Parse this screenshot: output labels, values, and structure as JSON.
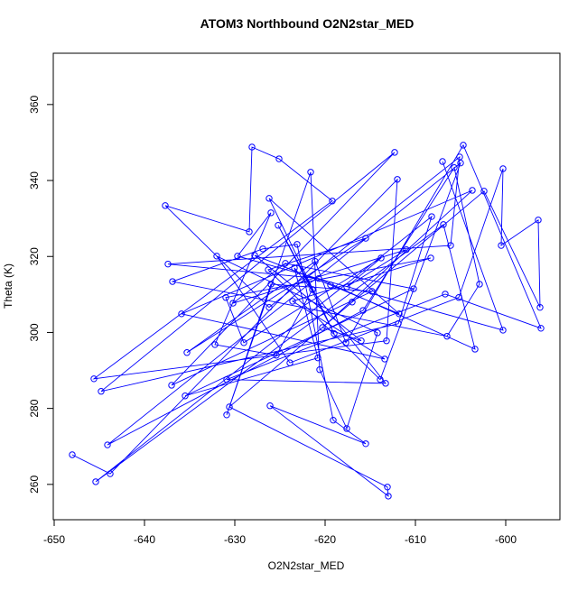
{
  "chart_data": {
    "type": "line",
    "title": "ATOM3 Northbound O2N2star_MED",
    "x_label": "O2N2star_MED",
    "y_label": "Theta (K)",
    "x": [
      -648,
      -643.8,
      -612,
      -613.2,
      -645.6,
      -619.2,
      -625.1,
      -628.1,
      -628.4,
      -637.7,
      -626.2,
      -605.1,
      -606.1,
      -637.4,
      -620.7,
      -603.4,
      -606.9,
      -645.4,
      -608.2,
      -611.9,
      -644.8,
      -612.3,
      -637,
      -614.8,
      -626,
      -630.9,
      -621.6,
      -620.6,
      -617.6,
      -614.2,
      -632,
      -623.9,
      -605.2,
      -600.3,
      -600.5,
      -596.4,
      -596.2,
      -602.4,
      -617,
      -630.6,
      -613.1,
      -613,
      -626.1,
      -615.5,
      -619.1,
      -623.1,
      -626.9,
      -636.9,
      -606.5,
      -602.9,
      -605.7,
      -615.8,
      -644.1,
      -605,
      -613.9,
      -626.3,
      -615.5,
      -635.3,
      -621.1,
      -617.7,
      -604.7,
      -596.1,
      -606.7,
      -630.9,
      -613.3,
      -623.4,
      -620.8,
      -635.5,
      -610.2,
      -624.4,
      -630.2,
      -611,
      -617.6,
      -613.8,
      -629,
      -631,
      -608.3,
      -623.6,
      -613.4,
      -635.9,
      -603.7,
      -620.3,
      -616,
      -627.8,
      -619.4,
      -611.8,
      -626.2,
      -619,
      -625.2,
      -621.4,
      -625.4,
      -632.2,
      -626,
      -629.7,
      -600.3,
      -607
    ],
    "values": [
      267.8,
      262.8,
      340.3,
      297.8,
      287.8,
      334.6,
      345.7,
      348.8,
      326.5,
      333.4,
      306.6,
      346.2,
      322.9,
      318,
      314.2,
      295.6,
      328.4,
      260.7,
      330.5,
      302.3,
      284.5,
      347.4,
      286.1,
      310.8,
      312.7,
      278.3,
      342.2,
      290.2,
      274.7,
      299.9,
      320.1,
      292,
      309.2,
      343.1,
      322.9,
      329.6,
      306.6,
      337.2,
      308,
      280.4,
      259.3,
      256.9,
      280.7,
      270.7,
      276.9,
      323.2,
      322,
      313.4,
      299,
      312.7,
      343.4,
      305.8,
      270.4,
      344.6,
      287.6,
      316.5,
      324.8,
      294.7,
      318.7,
      297.3,
      349.3,
      301.1,
      310.1,
      287.6,
      286.6,
      317,
      293.3,
      283.3,
      311.5,
      318.2,
      307.7,
      321.8,
      312,
      319.6,
      297.3,
      309.2,
      319.6,
      308.2,
      293,
      304.9,
      337.4,
      301.3,
      297.8,
      320.3,
      312.5,
      304.9,
      335.3,
      299.7,
      328.2,
      311.3,
      294,
      296.8,
      331.5,
      320.1,
      300.6,
      345
    ],
    "color": "#0000ff",
    "xlim": [
      -650.1,
      -594
    ],
    "ylim": [
      250.7,
      373.5
    ],
    "xticks": [
      -650,
      -640,
      -630,
      -620,
      -610,
      -600
    ],
    "yticks": [
      260,
      280,
      300,
      320,
      340,
      360
    ]
  }
}
